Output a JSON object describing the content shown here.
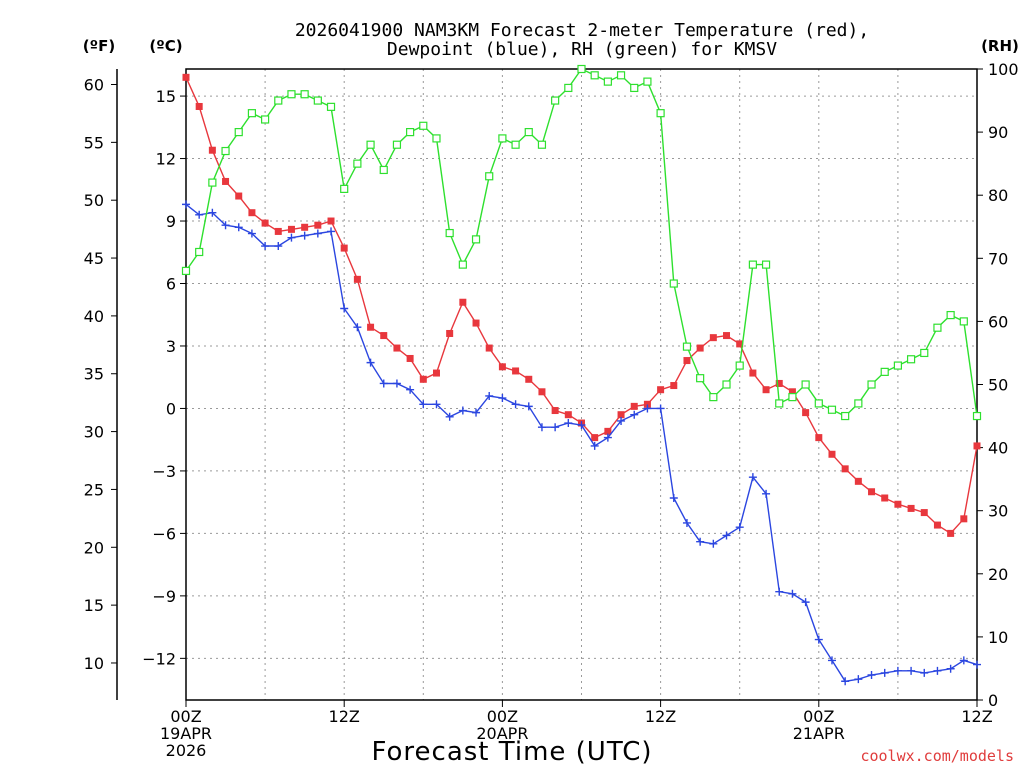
{
  "chart_data": {
    "type": "line",
    "title_line1": "2026041900 NAM3KM Forecast 2-meter Temperature (red),",
    "title_line2": "Dewpoint (blue), RH (green) for KMSV",
    "xlabel": "Forecast Time (UTC)",
    "credit": "coolwx.com/models",
    "units": {
      "f": "(ºF)",
      "c": "(ºC)",
      "rh": "(RH)"
    },
    "x_range_hours": [
      0,
      60
    ],
    "c_range": [
      -14,
      16.3
    ],
    "rh_range": [
      0,
      100
    ],
    "x_ticks": [
      {
        "hour": 0,
        "lines": [
          "00Z",
          "19APR",
          "2026"
        ]
      },
      {
        "hour": 12,
        "lines": [
          "12Z"
        ]
      },
      {
        "hour": 24,
        "lines": [
          "00Z",
          "20APR"
        ]
      },
      {
        "hour": 36,
        "lines": [
          "12Z"
        ]
      },
      {
        "hour": 48,
        "lines": [
          "00Z",
          "21APR"
        ]
      },
      {
        "hour": 60,
        "lines": [
          "12Z"
        ]
      }
    ],
    "c_ticks": [
      "15",
      "12",
      "9",
      "6",
      "3",
      "0",
      "−3",
      "−6",
      "−9",
      "−12"
    ],
    "f_ticks": [
      "60",
      "55",
      "50",
      "45",
      "40",
      "35",
      "30",
      "25",
      "20",
      "15",
      "10"
    ],
    "rh_ticks": [
      "100",
      "90",
      "80",
      "70",
      "60",
      "50",
      "40",
      "30",
      "20",
      "10",
      "0"
    ],
    "series": [
      {
        "name": "Temperature",
        "unit": "C",
        "color": "#e8373d",
        "marker": "filled-square",
        "values": [
          15.9,
          14.5,
          12.4,
          10.9,
          10.2,
          9.4,
          8.9,
          8.5,
          8.6,
          8.7,
          8.8,
          9.0,
          7.7,
          6.2,
          3.9,
          3.5,
          2.9,
          2.4,
          1.4,
          1.7,
          3.6,
          5.1,
          4.1,
          2.9,
          2.0,
          1.8,
          1.4,
          0.8,
          -0.1,
          -0.3,
          -0.7,
          -1.4,
          -1.1,
          -0.3,
          0.1,
          0.2,
          0.9,
          1.1,
          2.3,
          2.9,
          3.4,
          3.5,
          3.1,
          1.7,
          0.9,
          1.2,
          0.8,
          -0.2,
          -1.4,
          -2.2,
          -2.9,
          -3.5,
          -4.0,
          -4.3,
          -4.6,
          -4.8,
          -5.0,
          -5.6,
          -6.0,
          -5.3,
          -1.8
        ]
      },
      {
        "name": "Dewpoint",
        "unit": "C",
        "color": "#2b46e0",
        "marker": "plus",
        "values": [
          9.8,
          9.3,
          9.4,
          8.8,
          8.7,
          8.4,
          7.8,
          7.8,
          8.2,
          8.3,
          8.4,
          8.5,
          4.8,
          3.9,
          2.2,
          1.2,
          1.2,
          0.9,
          0.2,
          0.2,
          -0.4,
          -0.1,
          -0.2,
          0.6,
          0.5,
          0.2,
          0.1,
          -0.9,
          -0.9,
          -0.7,
          -0.8,
          -1.8,
          -1.4,
          -0.6,
          -0.3,
          0.0,
          0.0,
          -4.3,
          -5.5,
          -6.4,
          -6.5,
          -6.1,
          -5.7,
          -3.3,
          -4.1,
          -8.8,
          -8.9,
          -9.3,
          -11.1,
          -12.1,
          -13.1,
          -13.0,
          -12.8,
          -12.7,
          -12.6,
          -12.6,
          -12.7,
          -12.6,
          -12.5,
          -12.1,
          -12.3
        ]
      },
      {
        "name": "RH",
        "unit": "%",
        "color": "#2ee02e",
        "marker": "open-square",
        "values": [
          68,
          71,
          82,
          87,
          90,
          93,
          92,
          95,
          96,
          96,
          95,
          94,
          81,
          85,
          88,
          84,
          88,
          90,
          91,
          89,
          74,
          69,
          73,
          83,
          89,
          88,
          90,
          88,
          95,
          97,
          100,
          99,
          98,
          99,
          97,
          98,
          93,
          66,
          56,
          51,
          48,
          50,
          53,
          69,
          69,
          47,
          48,
          50,
          47,
          46,
          45,
          47,
          50,
          52,
          53,
          54,
          55,
          59,
          61,
          60,
          45
        ]
      }
    ]
  }
}
